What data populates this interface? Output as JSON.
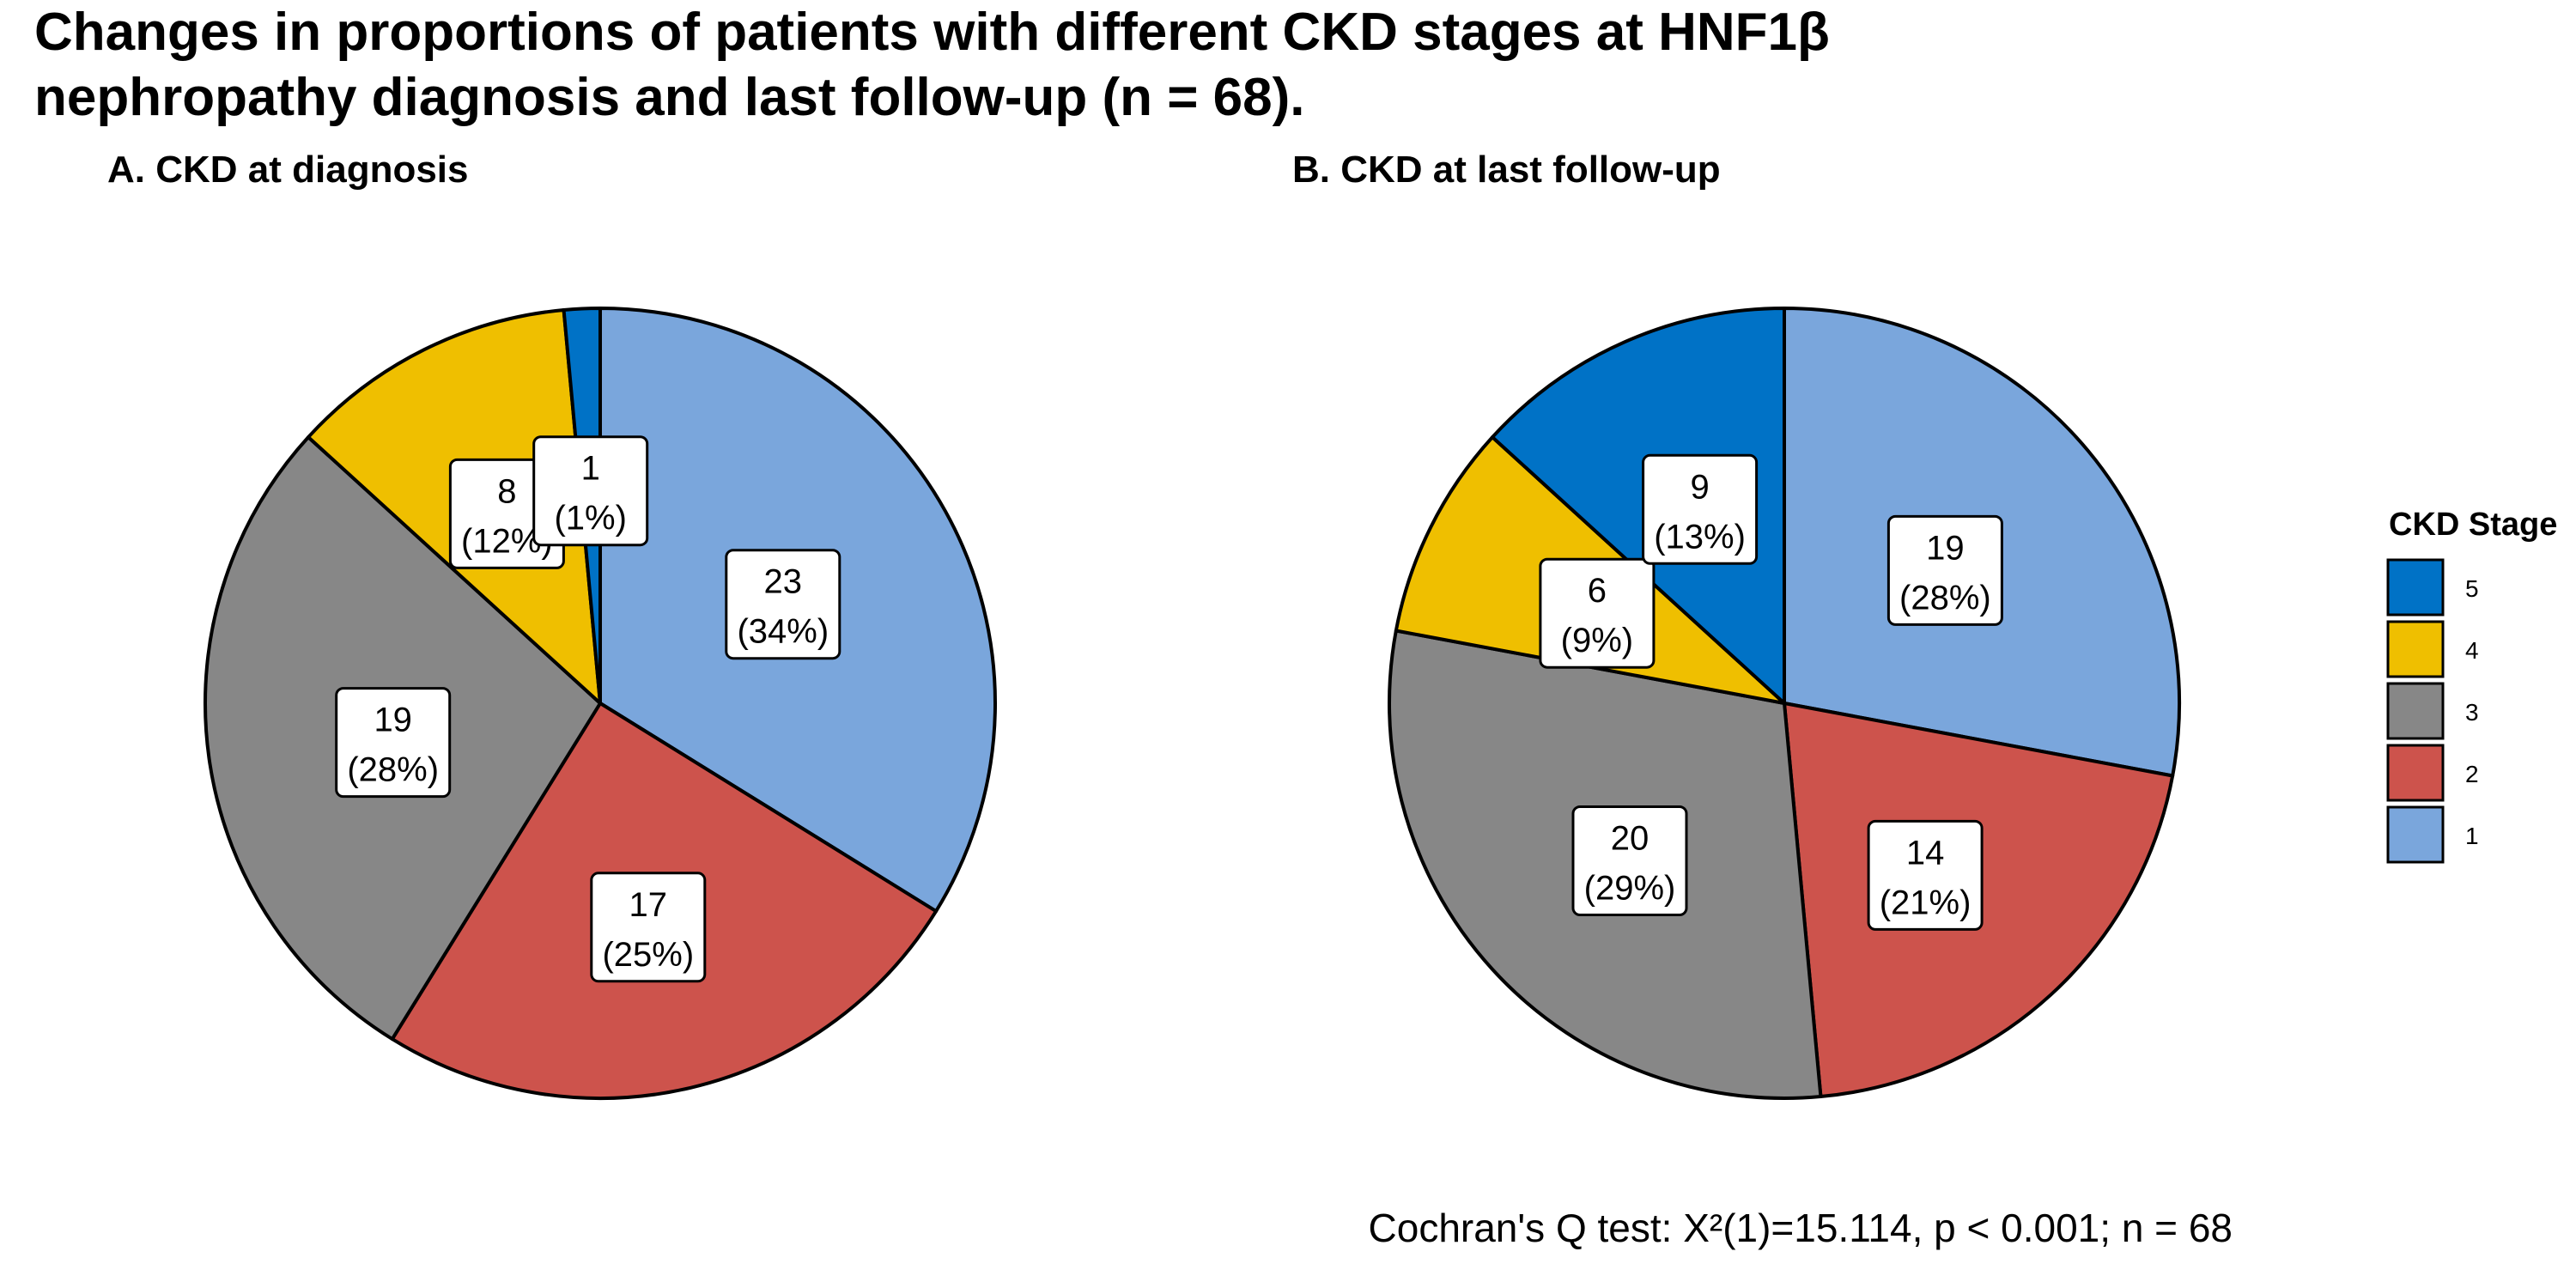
{
  "title_lines": [
    "Changes in proportions of patients with different CKD stages at HNF1β",
    "nephropathy diagnosis and last follow-up (n = 68)."
  ],
  "legend": {
    "title": "CKD Stage",
    "placement": "right",
    "items": [
      {
        "stage": "5",
        "color": "#0072C6"
      },
      {
        "stage": "4",
        "color": "#EFBF00"
      },
      {
        "stage": "3",
        "color": "#878787"
      },
      {
        "stage": "2",
        "color": "#CD534C"
      },
      {
        "stage": "1",
        "color": "#7AA6DC"
      }
    ]
  },
  "caption": "Cochran's Q test: X²(1)=15.114, p < 0.001; n = 68",
  "chart_data": [
    {
      "type": "pie",
      "title": "A. CKD at diagnosis",
      "slices": [
        {
          "stage": "1",
          "value": 23,
          "label_count": "23",
          "label_pct": "(34%)"
        },
        {
          "stage": "2",
          "value": 17,
          "label_count": "17",
          "label_pct": "(25%)"
        },
        {
          "stage": "3",
          "value": 19,
          "label_count": "19",
          "label_pct": "(28%)"
        },
        {
          "stage": "4",
          "value": 8,
          "label_count": "8",
          "label_pct": "(12%)"
        },
        {
          "stage": "5",
          "value": 1,
          "label_count": "1",
          "label_pct": "(1%)"
        }
      ]
    },
    {
      "type": "pie",
      "title": "B. CKD at last follow-up",
      "slices": [
        {
          "stage": "1",
          "value": 19,
          "label_count": "19",
          "label_pct": "(28%)"
        },
        {
          "stage": "2",
          "value": 14,
          "label_count": "14",
          "label_pct": "(21%)"
        },
        {
          "stage": "3",
          "value": 20,
          "label_count": "20",
          "label_pct": "(29%)"
        },
        {
          "stage": "4",
          "value": 6,
          "label_count": "6",
          "label_pct": "(9%)"
        },
        {
          "stage": "5",
          "value": 9,
          "label_count": "9",
          "label_pct": "(13%)"
        }
      ]
    }
  ]
}
